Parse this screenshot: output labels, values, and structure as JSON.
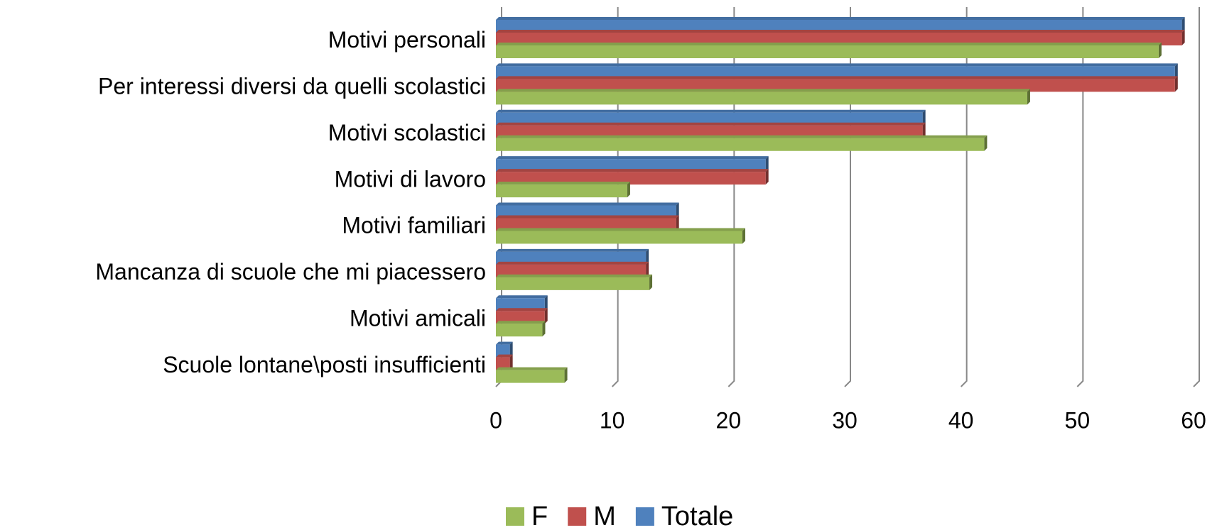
{
  "chart_data": {
    "type": "bar",
    "orientation": "horizontal",
    "categories": [
      "Motivi personali",
      "Per interessi diversi da quelli scolastici",
      "Motivi scolastici",
      "Motivi di lavoro",
      "Motivi familiari",
      "Mancanza di scuole che mi piacessero",
      "Motivi amicali",
      "Scuole lontane\\posti insufficienti"
    ],
    "series": [
      {
        "name": "F",
        "color": "#9bbb59",
        "values": [
          57,
          45.7,
          42,
          11.3,
          21.2,
          13.2,
          4,
          5.9
        ]
      },
      {
        "name": "M",
        "color": "#c0504d",
        "values": [
          59,
          58.4,
          36.7,
          23.2,
          15.5,
          12.9,
          4.2,
          1.2
        ]
      },
      {
        "name": "Totale",
        "color": "#4f81bd",
        "values": [
          59,
          58.4,
          36.7,
          23.2,
          15.5,
          12.9,
          4.2,
          1.2
        ]
      }
    ],
    "xlim": [
      0,
      60
    ],
    "xticks": [
      0,
      10,
      20,
      30,
      40,
      50,
      60
    ],
    "grid": true,
    "legend": "bottom"
  }
}
